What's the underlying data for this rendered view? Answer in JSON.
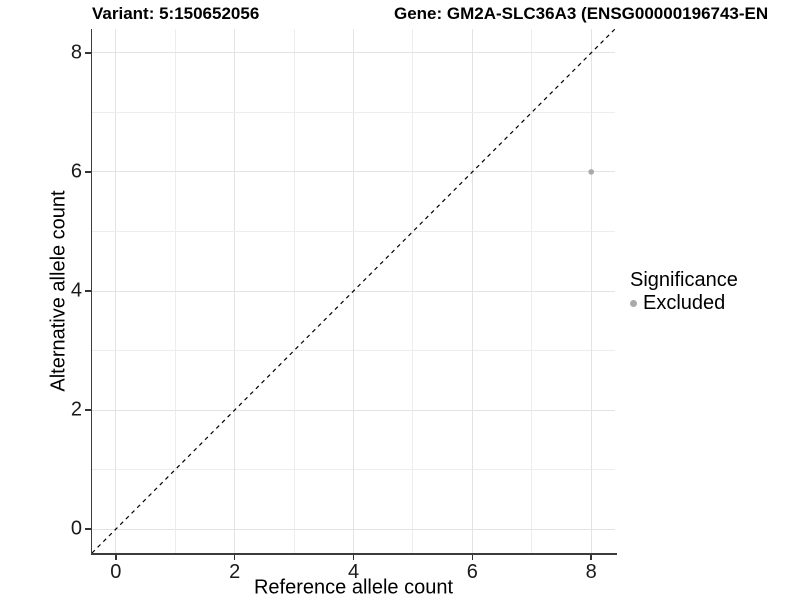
{
  "chart_data": {
    "type": "scatter",
    "title_left": "Variant: 5:150652056",
    "title_right": "Gene: GM2A-SLC36A3 (ENSG00000196743-EN",
    "xlabel": "Reference allele count",
    "ylabel": "Alternative allele count",
    "xlim": [
      -0.4,
      8.4
    ],
    "ylim": [
      -0.4,
      8.4
    ],
    "x_ticks": [
      0,
      2,
      4,
      6,
      8
    ],
    "y_ticks": [
      0,
      2,
      4,
      6,
      8
    ],
    "minor_gridlines": [
      1,
      3,
      5,
      7
    ],
    "grid": true,
    "identity_line": {
      "style": "dashed",
      "from": [
        -0.4,
        -0.4
      ],
      "to": [
        8.4,
        8.4
      ],
      "color": "#000000"
    },
    "series": [
      {
        "name": "Excluded",
        "points": [
          {
            "x": 8,
            "y": 6
          }
        ],
        "color": "#aaaaaa",
        "radius": 2.8
      }
    ],
    "legend": {
      "title": "Significance",
      "position": "right",
      "items": [
        {
          "label": "Excluded",
          "color": "#aaaaaa"
        }
      ]
    },
    "colors": {
      "major_grid": "#e3e3e3",
      "minor_grid": "#ededed",
      "axis_line": "#3c3c3c",
      "tick": "#333333",
      "point": "#aaaaaa",
      "background": "#ffffff"
    }
  }
}
